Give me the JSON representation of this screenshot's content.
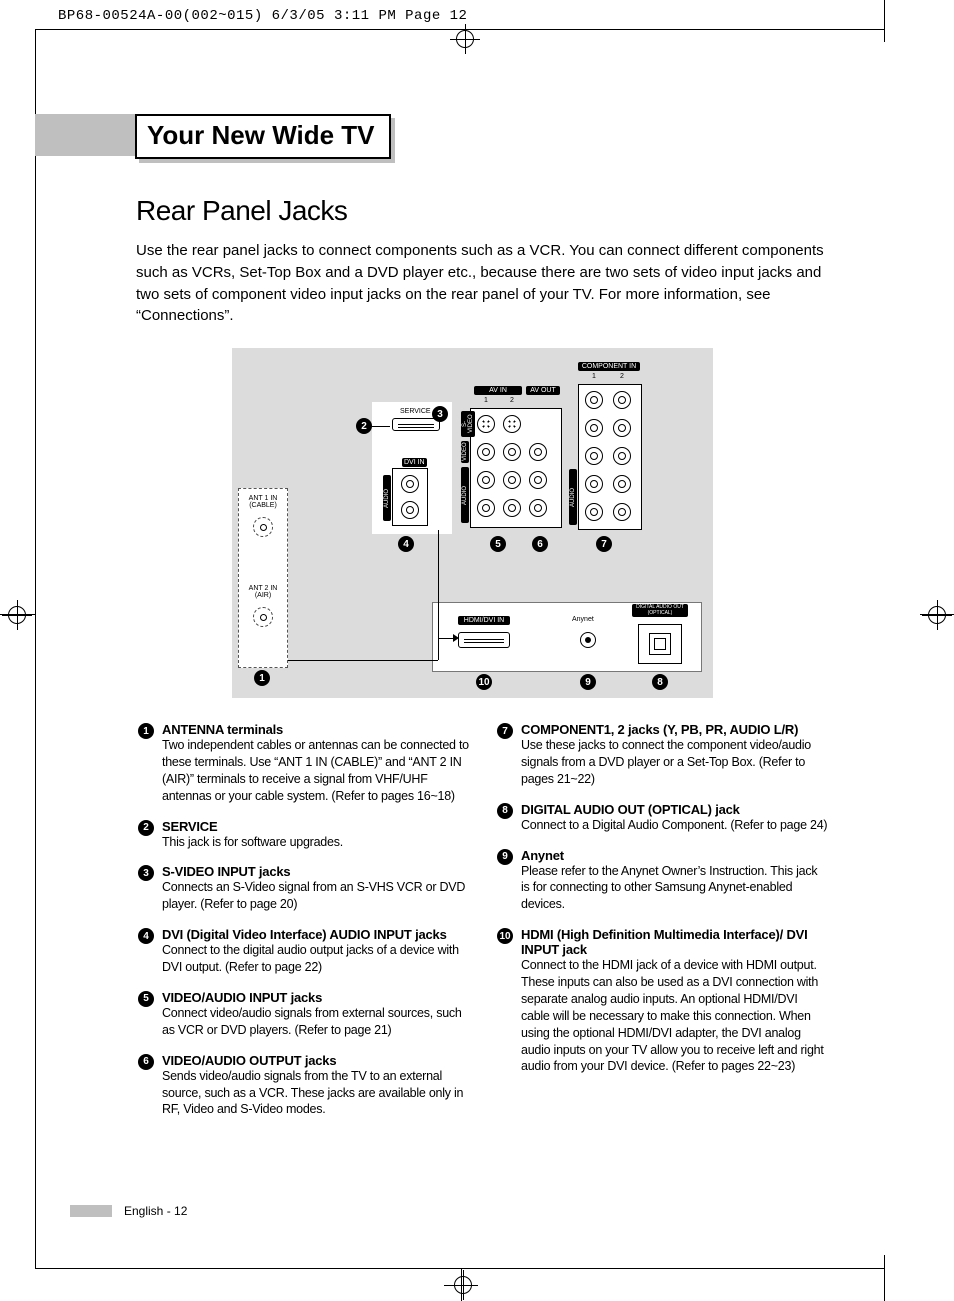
{
  "header_line": "BP68-00524A-00(002~015)  6/3/05  3:11 PM  Page 12",
  "banner_title": "Your New Wide TV",
  "section_title": "Rear Panel Jacks",
  "intro": "Use the rear panel jacks to connect components such as a VCR. You can connect different components such as VCRs, Set-Top Box and a DVD player etc., because there are two sets of video input jacks and two sets of component video input jacks on the rear panel of your TV. For more information, see “Connections”.",
  "diagram": {
    "ant1": "ANT 1 IN\n(CABLE)",
    "ant2": "ANT 2 IN\n(AIR)",
    "service": "SERVICE",
    "dvi_in": "DVI IN",
    "av_in": "AV IN",
    "av_out": "AV OUT",
    "component_in": "COMPONENT IN",
    "hdmi": "HDMI/DVI IN",
    "anynet": "Anynet",
    "optical": "DIGITAL AUDIO OUT\n(OPTICAL)",
    "one": "1",
    "two": "2",
    "side_audio": "AUDIO",
    "side_svideo": "S-VIDEO",
    "side_video": "VIDEO",
    "y": "Y",
    "pb": "PB",
    "pr": "PR",
    "l": "L",
    "r": "R"
  },
  "left_items": [
    {
      "n": "1",
      "title": "ANTENNA terminals",
      "desc": "Two independent cables or antennas can be connected to these terminals. Use “ANT 1 IN (CABLE)” and “ANT 2 IN (AIR)” terminals to receive a signal from VHF/UHF antennas or your cable system. (Refer to pages 16~18)"
    },
    {
      "n": "2",
      "title": "SERVICE",
      "desc": "This jack is for software upgrades."
    },
    {
      "n": "3",
      "title": "S-VIDEO INPUT jacks",
      "desc": "Connects an S-Video signal from an S-VHS VCR or DVD player. (Refer to page 20)"
    },
    {
      "n": "4",
      "title": "DVI (Digital Video Interface) AUDIO INPUT jacks",
      "desc": "Connect to the digital audio output jacks of a device with DVI output. (Refer to page 22)"
    },
    {
      "n": "5",
      "title": "VIDEO/AUDIO INPUT jacks",
      "desc": "Connect video/audio signals from external sources, such as VCR or DVD players. (Refer to page 21)"
    },
    {
      "n": "6",
      "title": "VIDEO/AUDIO OUTPUT jacks",
      "desc": "Sends video/audio signals from the TV to an external source, such as a VCR. These jacks are available only in RF, Video and S-Video modes."
    }
  ],
  "right_items": [
    {
      "n": "7",
      "title_html": "COMPONENT1, 2 jacks (Y, P<span class='smcaps'>B</span>, P<span class='smcaps'>R</span>, AUDIO L/R)",
      "desc": "Use these jacks to connect the component video/audio signals from a DVD player or a Set-Top Box. (Refer to pages 21~22)"
    },
    {
      "n": "8",
      "title": "DIGITAL AUDIO OUT (OPTICAL) jack",
      "desc": "Connect to a Digital Audio Component. (Refer to page 24)"
    },
    {
      "n": "9",
      "title": "Anynet",
      "desc": "Please refer to the Anynet Owner’s Instruction. This jack is for connecting to other Samsung Anynet-enabled devices."
    },
    {
      "n": "10",
      "title": "HDMI (High Definition Multimedia Interface)/ DVI INPUT jack",
      "desc": "Connect to the HDMI jack of a device with HDMI output. These inputs can also be used as a DVI connection with separate analog audio inputs. An optional HDMI/DVI cable will be necessary to make this connection. When using the optional HDMI/DVI adapter, the DVI analog audio inputs on your TV allow you to receive left and right audio from your DVI device. (Refer to pages 22~23)"
    }
  ],
  "footer": "English - 12",
  "colors": {
    "gray": "#bfbfbf",
    "panel": "#dcdcdc"
  }
}
